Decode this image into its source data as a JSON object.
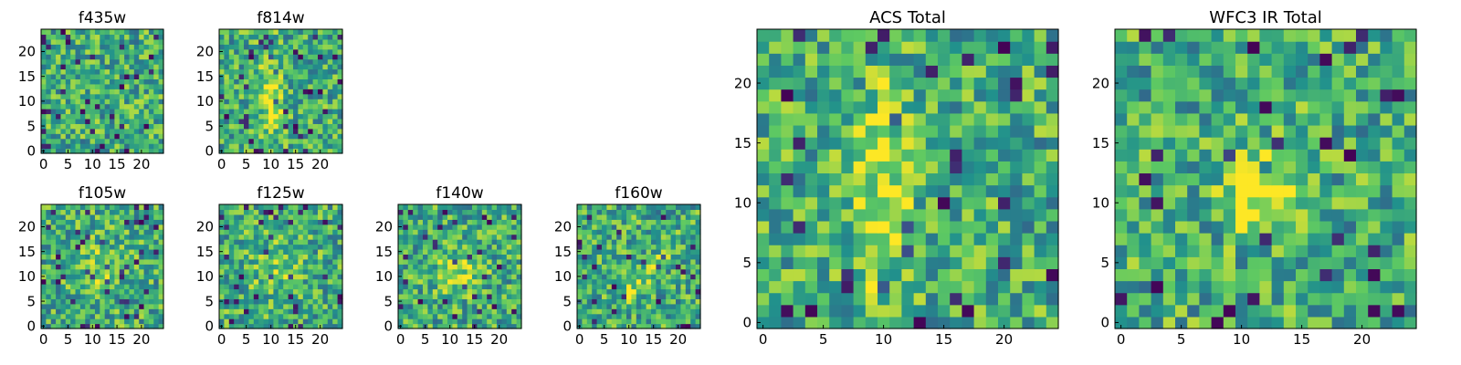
{
  "figure": {
    "panels": [
      {
        "id": "f435w",
        "title": "f435w",
        "seed": 11,
        "blob": null,
        "xticks": [
          0,
          5,
          10,
          15,
          20
        ],
        "yticks": [
          0,
          5,
          10,
          15,
          20
        ]
      },
      {
        "id": "f814w",
        "title": "f814w",
        "seed": 29,
        "blob": "streak",
        "xticks": [
          0,
          5,
          10,
          15,
          20
        ],
        "yticks": [
          0,
          5,
          10,
          15,
          20
        ]
      },
      {
        "id": "f105w",
        "title": "f105w",
        "seed": 47,
        "blob": "mild",
        "xticks": [
          0,
          5,
          10,
          15,
          20
        ],
        "yticks": [
          0,
          5,
          10,
          15,
          20
        ]
      },
      {
        "id": "f125w",
        "title": "f125w",
        "seed": 63,
        "blob": "mild",
        "xticks": [
          0,
          5,
          10,
          15,
          20
        ],
        "yticks": [
          0,
          5,
          10,
          15,
          20
        ]
      },
      {
        "id": "f140w",
        "title": "f140w",
        "seed": 71,
        "blob": "center",
        "xticks": [
          0,
          5,
          10,
          15,
          20
        ],
        "yticks": [
          0,
          5,
          10,
          15,
          20
        ]
      },
      {
        "id": "f160w",
        "title": "f160w",
        "seed": 83,
        "blob": "diag",
        "xticks": [
          0,
          5,
          10,
          15,
          20
        ],
        "yticks": [
          0,
          5,
          10,
          15,
          20
        ]
      },
      {
        "id": "acs-total",
        "title": "ACS Total",
        "seed": 97,
        "blob": "streak",
        "xticks": [
          0,
          5,
          10,
          15,
          20
        ],
        "yticks": [
          0,
          5,
          10,
          15,
          20
        ]
      },
      {
        "id": "wfc3-ir-total",
        "title": "WFC3 IR Total",
        "seed": 113,
        "blob": "strong",
        "xticks": [
          0,
          5,
          10,
          15,
          20
        ],
        "yticks": [
          0,
          5,
          10,
          15,
          20
        ]
      }
    ]
  },
  "chart_data": {
    "type": "heatmap",
    "grid_size": [
      25,
      25
    ],
    "colormap": [
      "#440154",
      "#3b528b",
      "#21918c",
      "#5ec962",
      "#fde725"
    ],
    "axes": {
      "x_ticks": [
        0,
        5,
        10,
        15,
        20
      ],
      "y_ticks": [
        0,
        5,
        10,
        15,
        20
      ],
      "xlim": [
        -0.5,
        24.5
      ],
      "ylim": [
        -0.5,
        24.5
      ]
    },
    "panels": [
      "f435w",
      "f814w",
      "f105w",
      "f125w",
      "f140w",
      "f160w",
      "ACS Total",
      "WFC3 IR Total"
    ]
  }
}
